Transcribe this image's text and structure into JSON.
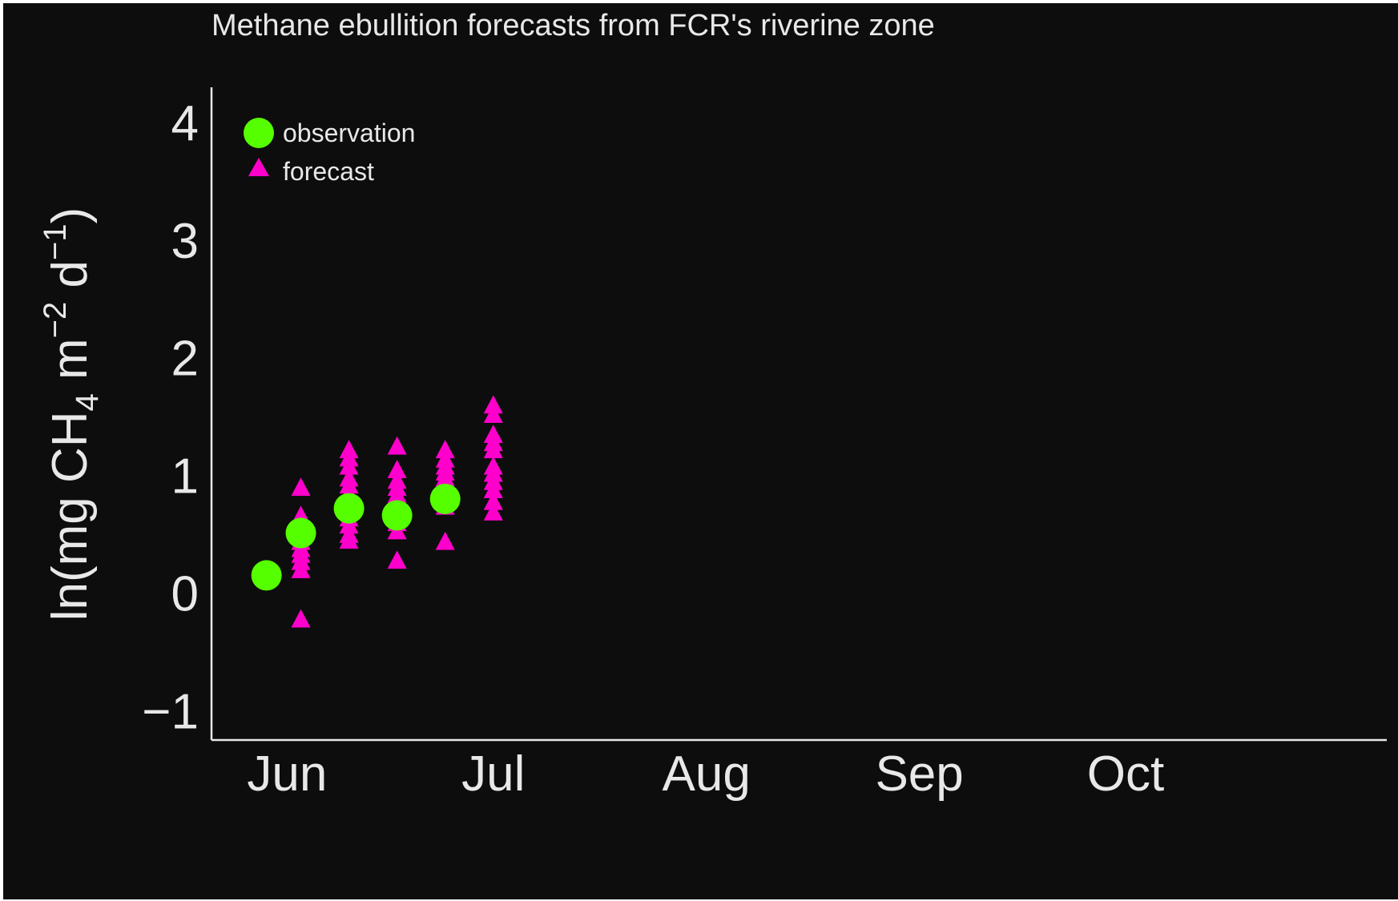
{
  "chart_data": {
    "type": "scatter",
    "title": "Methane ebullition forecasts from FCR's riverine zone",
    "ylabel": {
      "prefix": "ln(mg CH",
      "sub": "4",
      "mid1": " m",
      "sup1": "−2",
      "mid2": " d",
      "sup2": "−1",
      "suffix": ")"
    },
    "xlabel": "",
    "y_ticks": [
      {
        "value": -1,
        "label": "−1"
      },
      {
        "value": 0,
        "label": "0"
      },
      {
        "value": 1,
        "label": "1"
      },
      {
        "value": 2,
        "label": "2"
      },
      {
        "value": 3,
        "label": "3"
      },
      {
        "value": 4,
        "label": "4"
      }
    ],
    "x_ticks": [
      {
        "date": "2020-06-01",
        "label": "Jun"
      },
      {
        "date": "2020-07-01",
        "label": "Jul"
      },
      {
        "date": "2020-08-01",
        "label": "Aug"
      },
      {
        "date": "2020-09-01",
        "label": "Sep"
      },
      {
        "date": "2020-10-01",
        "label": "Oct"
      }
    ],
    "xlim": [
      "2020-05-21",
      "2020-11-08"
    ],
    "ylim": [
      -1.25,
      4.3
    ],
    "grid": false,
    "legend_position": "top-left",
    "series": [
      {
        "name": "observation",
        "marker": "circle",
        "color": "#55ff00",
        "points": [
          {
            "x": "2020-05-29",
            "y": 0.15
          },
          {
            "x": "2020-06-03",
            "y": 0.51
          },
          {
            "x": "2020-06-10",
            "y": 0.72
          },
          {
            "x": "2020-06-17",
            "y": 0.66
          },
          {
            "x": "2020-06-24",
            "y": 0.8
          }
        ]
      },
      {
        "name": "forecast",
        "marker": "triangle",
        "color": "#ff00cc",
        "points": [
          {
            "x": "2020-06-03",
            "y": 0.9
          },
          {
            "x": "2020-06-03",
            "y": 0.66
          },
          {
            "x": "2020-06-03",
            "y": 0.5
          },
          {
            "x": "2020-06-03",
            "y": 0.44
          },
          {
            "x": "2020-06-03",
            "y": 0.38
          },
          {
            "x": "2020-06-03",
            "y": 0.33
          },
          {
            "x": "2020-06-03",
            "y": 0.27
          },
          {
            "x": "2020-06-03",
            "y": 0.2
          },
          {
            "x": "2020-06-03",
            "y": -0.22
          },
          {
            "x": "2020-06-10",
            "y": 1.22
          },
          {
            "x": "2020-06-10",
            "y": 1.15
          },
          {
            "x": "2020-06-10",
            "y": 1.08
          },
          {
            "x": "2020-06-10",
            "y": 0.98
          },
          {
            "x": "2020-06-10",
            "y": 0.92
          },
          {
            "x": "2020-06-10",
            "y": 0.85
          },
          {
            "x": "2020-06-10",
            "y": 0.78
          },
          {
            "x": "2020-06-10",
            "y": 0.64
          },
          {
            "x": "2020-06-10",
            "y": 0.58
          },
          {
            "x": "2020-06-10",
            "y": 0.5
          },
          {
            "x": "2020-06-10",
            "y": 0.45
          },
          {
            "x": "2020-06-17",
            "y": 1.25
          },
          {
            "x": "2020-06-17",
            "y": 1.05
          },
          {
            "x": "2020-06-17",
            "y": 0.96
          },
          {
            "x": "2020-06-17",
            "y": 0.9
          },
          {
            "x": "2020-06-17",
            "y": 0.84
          },
          {
            "x": "2020-06-17",
            "y": 0.78
          },
          {
            "x": "2020-06-17",
            "y": 0.72
          },
          {
            "x": "2020-06-17",
            "y": 0.6
          },
          {
            "x": "2020-06-17",
            "y": 0.53
          },
          {
            "x": "2020-06-17",
            "y": 0.28
          },
          {
            "x": "2020-06-24",
            "y": 1.22
          },
          {
            "x": "2020-06-24",
            "y": 1.14
          },
          {
            "x": "2020-06-24",
            "y": 1.08
          },
          {
            "x": "2020-06-24",
            "y": 1.03
          },
          {
            "x": "2020-06-24",
            "y": 0.98
          },
          {
            "x": "2020-06-24",
            "y": 0.92
          },
          {
            "x": "2020-06-24",
            "y": 0.85
          },
          {
            "x": "2020-06-24",
            "y": 0.74
          },
          {
            "x": "2020-06-24",
            "y": 0.44
          },
          {
            "x": "2020-07-01",
            "y": 1.6
          },
          {
            "x": "2020-07-01",
            "y": 1.52
          },
          {
            "x": "2020-07-01",
            "y": 1.35
          },
          {
            "x": "2020-07-01",
            "y": 1.28
          },
          {
            "x": "2020-07-01",
            "y": 1.22
          },
          {
            "x": "2020-07-01",
            "y": 1.08
          },
          {
            "x": "2020-07-01",
            "y": 1.02
          },
          {
            "x": "2020-07-01",
            "y": 0.95
          },
          {
            "x": "2020-07-01",
            "y": 0.88
          },
          {
            "x": "2020-07-01",
            "y": 0.78
          },
          {
            "x": "2020-07-01",
            "y": 0.69
          }
        ]
      }
    ]
  },
  "colors": {
    "background": "#0d0d0d",
    "axis": "#e8e8e8",
    "text": "#e8e8e8"
  }
}
